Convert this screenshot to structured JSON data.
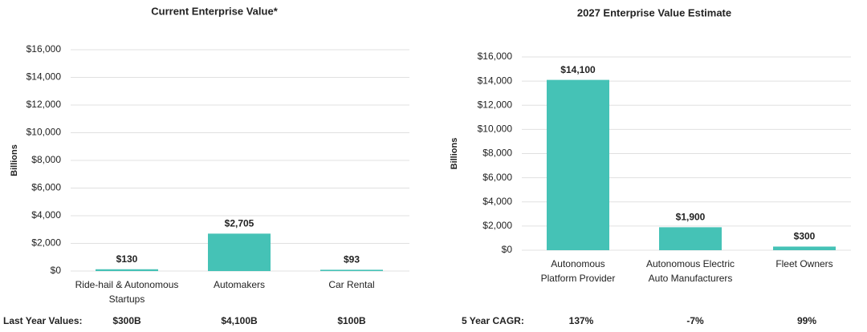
{
  "chart_data": [
    {
      "type": "bar",
      "title": "Current Enterprise Value*",
      "ylabel": "Billions",
      "categories": [
        [
          "Ride-hail & Autonomous",
          "Startups"
        ],
        [
          "Automakers"
        ],
        [
          "Car Rental"
        ]
      ],
      "values": [
        130,
        2705,
        93
      ],
      "value_labels": [
        "$130",
        "$2,705",
        "$93"
      ],
      "color": "#45c2b6",
      "ylim": [
        0,
        16000
      ],
      "yticks": [
        {
          "value": 0,
          "label": "$0"
        },
        {
          "value": 2000,
          "label": "$2,000"
        },
        {
          "value": 4000,
          "label": "$4,000"
        },
        {
          "value": 6000,
          "label": "$6,000"
        },
        {
          "value": 8000,
          "label": "$8,000"
        },
        {
          "value": 10000,
          "label": "$10,000"
        },
        {
          "value": 12000,
          "label": "$12,000"
        },
        {
          "value": 14000,
          "label": "$14,000"
        },
        {
          "value": 16000,
          "label": "$16,000"
        }
      ],
      "grid": true,
      "footer_label": "Last Year Values:",
      "footer_values": [
        "$300B",
        "$4,100B",
        "$100B"
      ]
    },
    {
      "type": "bar",
      "title": "2027 Enterprise Value Estimate",
      "ylabel": "Billions",
      "categories": [
        [
          "Autonomous",
          "Platform Provider"
        ],
        [
          "Autonomous Electric",
          "Auto Manufacturers"
        ],
        [
          "Fleet Owners"
        ]
      ],
      "values": [
        14100,
        1900,
        300
      ],
      "value_labels": [
        "$14,100",
        "$1,900",
        "$300"
      ],
      "color": "#45c2b6",
      "ylim": [
        0,
        16000
      ],
      "yticks": [
        {
          "value": 0,
          "label": "$0"
        },
        {
          "value": 2000,
          "label": "$2,000"
        },
        {
          "value": 4000,
          "label": "$4,000"
        },
        {
          "value": 6000,
          "label": "$6,000"
        },
        {
          "value": 8000,
          "label": "$8,000"
        },
        {
          "value": 10000,
          "label": "$10,000"
        },
        {
          "value": 12000,
          "label": "$12,000"
        },
        {
          "value": 14000,
          "label": "$14,000"
        },
        {
          "value": 16000,
          "label": "$16,000"
        }
      ],
      "grid": true,
      "footer_label": "5 Year CAGR:",
      "footer_values": [
        "137%",
        "-7%",
        "99%"
      ]
    }
  ]
}
